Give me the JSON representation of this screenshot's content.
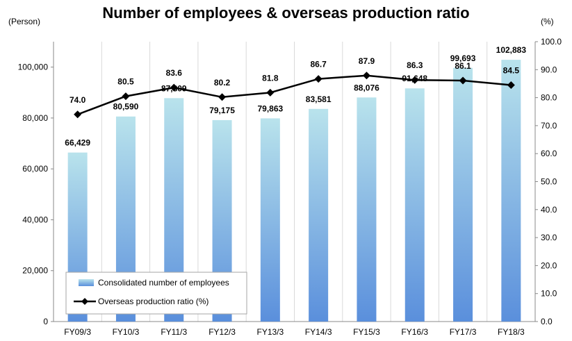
{
  "chart_data": {
    "type": "bar",
    "title": "Number of employees & overseas production ratio",
    "categories": [
      "FY09/3",
      "FY10/3",
      "FY11/3",
      "FY12/3",
      "FY13/3",
      "FY14/3",
      "FY15/3",
      "FY16/3",
      "FY17/3",
      "FY18/3"
    ],
    "series": [
      {
        "name": "Consolidated number of employees",
        "type": "bar",
        "axis": "left",
        "values": [
          66429,
          80590,
          87809,
          79175,
          79863,
          83581,
          88076,
          91648,
          99693,
          102883
        ],
        "labels": [
          "66,429",
          "80,590",
          "87,809",
          "79,175",
          "79,863",
          "83,581",
          "88,076",
          "91,648",
          "99,693",
          "102,883"
        ]
      },
      {
        "name": "Overseas production ratio (%)",
        "type": "line",
        "axis": "right",
        "values": [
          74.0,
          80.5,
          83.6,
          80.2,
          81.8,
          86.7,
          87.9,
          86.3,
          86.1,
          84.5
        ],
        "labels": [
          "74.0",
          "80.5",
          "83.6",
          "80.2",
          "81.8",
          "86.7",
          "87.9",
          "86.3",
          "86.1",
          "84.5"
        ]
      }
    ],
    "y_left": {
      "label": "(Person)",
      "ylim": [
        0,
        110000
      ],
      "ticks": [
        0,
        20000,
        40000,
        60000,
        80000,
        100000
      ],
      "tick_labels": [
        "0",
        "20,000",
        "40,000",
        "60,000",
        "80,000",
        "100,000"
      ]
    },
    "y_right": {
      "label": "(%)",
      "ylim": [
        0,
        100
      ],
      "ticks": [
        0,
        10,
        20,
        30,
        40,
        50,
        60,
        70,
        80,
        90,
        100
      ],
      "tick_labels": [
        "0.0",
        "10.0",
        "20.0",
        "30.0",
        "40.0",
        "50.0",
        "60.0",
        "70.0",
        "80.0",
        "90.0",
        "100.0"
      ]
    },
    "grid": "vertical",
    "legend_position": "bottom-left",
    "colors": {
      "bar_top": "#b9e3ec",
      "bar_bottom": "#5a8fdc",
      "line": "#000000",
      "grid": "#d9d9d9"
    }
  }
}
